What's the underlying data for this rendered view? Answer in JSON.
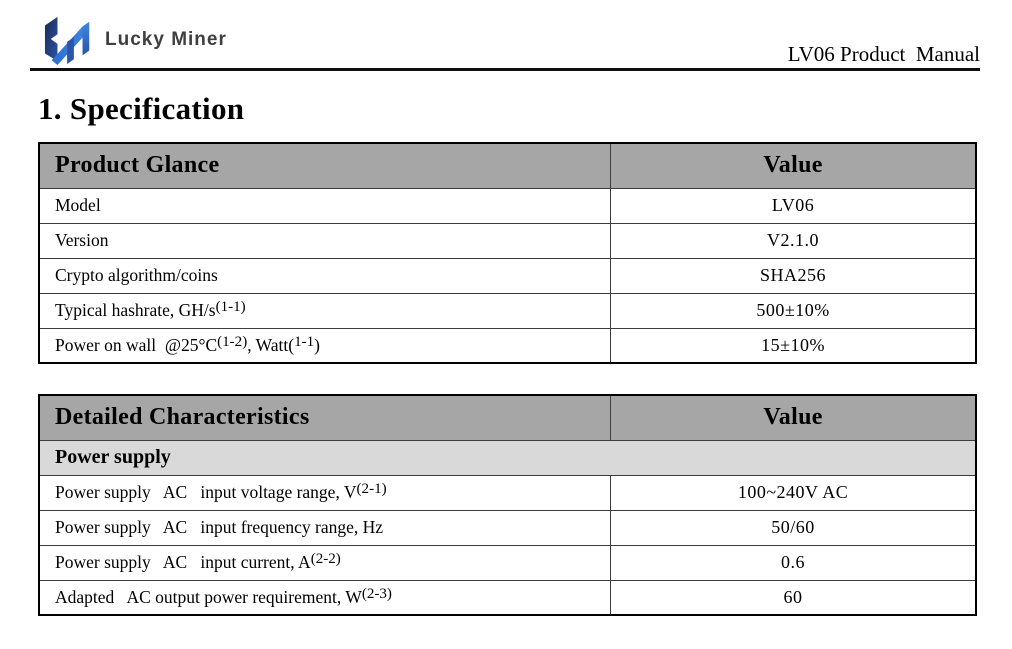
{
  "header": {
    "brand_name": "Lucky Miner",
    "manual_title": "LV06 Product  Manual"
  },
  "section_title": "1. Specification",
  "colors": {
    "table-header-bg": "#a6a6a6",
    "section-row-bg": "#d9d9d9",
    "table-border": "#000000",
    "row-border": "#3c3c3c",
    "logo-navy": "#1b2a52",
    "logo-mid": "#2b55a8",
    "logo-blue": "#2f6fd0",
    "logo-bright": "#3f87e0",
    "brand-text": "#3f3f3f"
  },
  "tables": [
    {
      "name": "product-glance-table",
      "title": "Product Glance",
      "value_header": "Value",
      "section": null,
      "rows": [
        {
          "label": [
            [
              "Model",
              false
            ]
          ],
          "value": "LV06"
        },
        {
          "label": [
            [
              "Version",
              false
            ]
          ],
          "value": "V2.1.0"
        },
        {
          "label": [
            [
              "Crypto algorithm/coins",
              false
            ]
          ],
          "value": "SHA256"
        },
        {
          "label": [
            [
              "Typical hashrate, GH/s",
              false
            ],
            [
              "(1-1)",
              true
            ]
          ],
          "value": "500±10%"
        },
        {
          "label": [
            [
              "Power on wall  @25°C",
              false
            ],
            [
              "(1-2)",
              true
            ],
            [
              ", Watt(",
              false
            ],
            [
              "1-1",
              true
            ],
            [
              ")",
              false
            ]
          ],
          "value": "15±10%"
        }
      ]
    },
    {
      "name": "detailed-characteristics-table",
      "title": "Detailed Characteristics",
      "value_header": "Value",
      "section": "Power supply",
      "rows": [
        {
          "label": [
            [
              "Power supply   AC   input voltage range, V",
              false
            ],
            [
              "(2-1)",
              true
            ]
          ],
          "value": "100~240V AC"
        },
        {
          "label": [
            [
              "Power supply   AC   input frequency range, Hz",
              false
            ]
          ],
          "value": "50/60"
        },
        {
          "label": [
            [
              "Power supply   AC   input current, A",
              false
            ],
            [
              "(2-2)",
              true
            ]
          ],
          "value": "0.6"
        },
        {
          "label": [
            [
              "Adapted   AC output power requirement, W",
              false
            ],
            [
              "(2-3)",
              true
            ]
          ],
          "value": "60"
        }
      ]
    }
  ]
}
